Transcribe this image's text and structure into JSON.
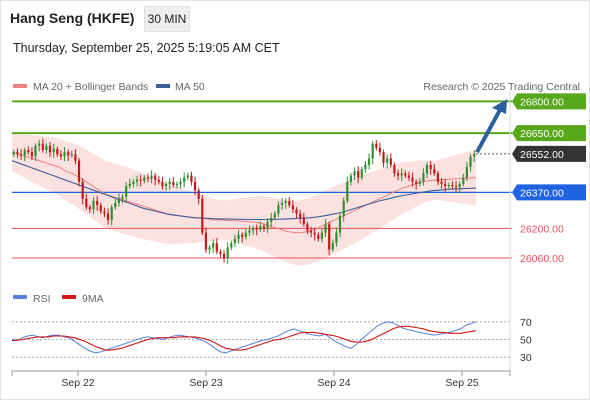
{
  "header": {
    "title": "Hang Seng (HKFE)",
    "timeframe": "30 MIN",
    "datetime": "Thursday, September 25, 2025 5:19:05 AM CET"
  },
  "legend": {
    "ma20": "MA 20 + Bollinger Bands",
    "ma50": "MA 50",
    "credit": "Research © 2025 Trading Central"
  },
  "rsi_legend": {
    "rsi": "RSI",
    "ma9": "9MA"
  },
  "colors": {
    "candle_up": "#2f8f2f",
    "candle_down": "#c41818",
    "bollinger_fill": "#fbdcdc",
    "ma20": "#f08080",
    "ma50": "#3e5f9c",
    "resistance": "#58a81c",
    "current": "#333333",
    "pivot": "#1f63e0",
    "support": "#e8505a",
    "rsi_line": "#5b7fe0",
    "rsi_ma": "#d31818",
    "arrow": "#2d5f9c"
  },
  "chart_data": {
    "type": "candlestick",
    "x_ticks": [
      "Sep 22",
      "Sep 23",
      "Sep 24",
      "Sep 25"
    ],
    "price_range": [
      25980,
      26830
    ],
    "levels": [
      {
        "value": 26800,
        "label": "26800.00",
        "kind": "resistance"
      },
      {
        "value": 26650,
        "label": "26650.00",
        "kind": "resistance"
      },
      {
        "value": 26552,
        "label": "26552.00",
        "kind": "current"
      },
      {
        "value": 26370,
        "label": "26370.00",
        "kind": "pivot"
      },
      {
        "value": 26200,
        "label": "26200.00",
        "kind": "support"
      },
      {
        "value": 26060,
        "label": "26060.00",
        "kind": "support"
      }
    ],
    "closes": [
      26560,
      26550,
      26545,
      26570,
      26560,
      26540,
      26590,
      26600,
      26570,
      26590,
      26560,
      26575,
      26550,
      26540,
      26560,
      26545,
      26550,
      26520,
      26420,
      26340,
      26300,
      26290,
      26330,
      26310,
      26280,
      26270,
      26240,
      26300,
      26320,
      26340,
      26350,
      26400,
      26410,
      26420,
      26430,
      26425,
      26440,
      26435,
      26450,
      26430,
      26420,
      26400,
      26410,
      26420,
      26405,
      26410,
      26420,
      26440,
      26450,
      26420,
      26380,
      26340,
      26180,
      26100,
      26110,
      26130,
      26090,
      26080,
      26060,
      26110,
      26130,
      26150,
      26170,
      26160,
      26180,
      26190,
      26200,
      26195,
      26210,
      26200,
      26230,
      26250,
      26270,
      26310,
      26320,
      26330,
      26310,
      26290,
      26270,
      26250,
      26220,
      26190,
      26180,
      26170,
      26150,
      26180,
      26220,
      26100,
      26130,
      26180,
      26260,
      26330,
      26420,
      26450,
      26470,
      26440,
      26480,
      26500,
      26530,
      26600,
      26580,
      26560,
      26510,
      26530,
      26500,
      26460,
      26450,
      26460,
      26450,
      26440,
      26420,
      26410,
      26420,
      26460,
      26500,
      26480,
      26460,
      26420,
      26410,
      26400,
      26405,
      26400,
      26395,
      26410,
      26440,
      26490,
      26540,
      26552
    ],
    "ma20": [
      26560,
      26550,
      26540,
      26530,
      26520,
      26510,
      26500,
      26490,
      26470,
      26460,
      26440,
      26420,
      26400,
      26380,
      26360,
      26350,
      26340,
      26330,
      26320,
      26310,
      26300,
      26290,
      26280,
      26270,
      26265,
      26260,
      26255,
      26250,
      26250,
      26245,
      26240,
      26240,
      26238,
      26236,
      26235,
      26232,
      26230,
      26225,
      26215,
      26205,
      26195,
      26185,
      26180,
      26180,
      26185,
      26195,
      26210,
      26225,
      26240,
      26255,
      26270,
      26285,
      26300,
      26315,
      26330,
      26345,
      26360,
      26375,
      26390,
      26400,
      26410,
      26420,
      26425,
      26428,
      26430,
      26432,
      26434,
      26436,
      26438,
      26440
    ],
    "ma50": [
      26520,
      26505,
      26490,
      26475,
      26460,
      26445,
      26430,
      26415,
      26400,
      26385,
      26370,
      26355,
      26340,
      26325,
      26310,
      26295,
      26285,
      26275,
      26265,
      26260,
      26255,
      26250,
      26248,
      26246,
      26245,
      26244,
      26243,
      26242,
      26242,
      26242,
      26243,
      26244,
      26246,
      26248,
      26250,
      26255,
      26262,
      26270,
      26280,
      26292,
      26305,
      26318,
      26330,
      26340,
      26350,
      26358,
      26365,
      26372,
      26378,
      26382,
      26385,
      26387,
      26389,
      26390
    ],
    "rsi_range": [
      20,
      80
    ],
    "rsi_ticks": [
      70,
      50,
      30
    ],
    "rsi": [
      50,
      49,
      52,
      54,
      55,
      53,
      52,
      54,
      55,
      55,
      53,
      52,
      48,
      44,
      40,
      37,
      35,
      36,
      38,
      40,
      42,
      44,
      46,
      48,
      50,
      52,
      53,
      52,
      51,
      50,
      52,
      54,
      55,
      54,
      53,
      52,
      50,
      48,
      44,
      40,
      36,
      35,
      37,
      39,
      41,
      43,
      45,
      47,
      49,
      50,
      52,
      54,
      57,
      60,
      62,
      60,
      58,
      56,
      55,
      54,
      56,
      52,
      48,
      45,
      42,
      40,
      44,
      50,
      55,
      60,
      65,
      68,
      70,
      69,
      66,
      63,
      61,
      60,
      58,
      57,
      56,
      55,
      56,
      57,
      58,
      60,
      62,
      66,
      68,
      70
    ],
    "rsi_ma9": [
      49,
      49,
      50,
      51,
      52,
      53,
      53,
      53,
      54,
      54,
      54,
      53,
      52,
      50,
      48,
      45,
      42,
      40,
      38,
      38,
      39,
      40,
      42,
      44,
      46,
      48,
      50,
      51,
      52,
      52,
      52,
      52,
      53,
      53,
      53,
      53,
      52,
      51,
      49,
      46,
      43,
      40,
      39,
      38,
      38,
      39,
      41,
      43,
      45,
      47,
      49,
      50,
      51,
      53,
      55,
      57,
      58,
      58,
      58,
      57,
      56,
      55,
      54,
      52,
      50,
      48,
      47,
      47,
      48,
      50,
      53,
      56,
      59,
      62,
      64,
      65,
      65,
      64,
      63,
      62,
      60,
      59,
      58,
      58,
      57,
      57,
      57,
      58,
      59,
      60
    ]
  }
}
